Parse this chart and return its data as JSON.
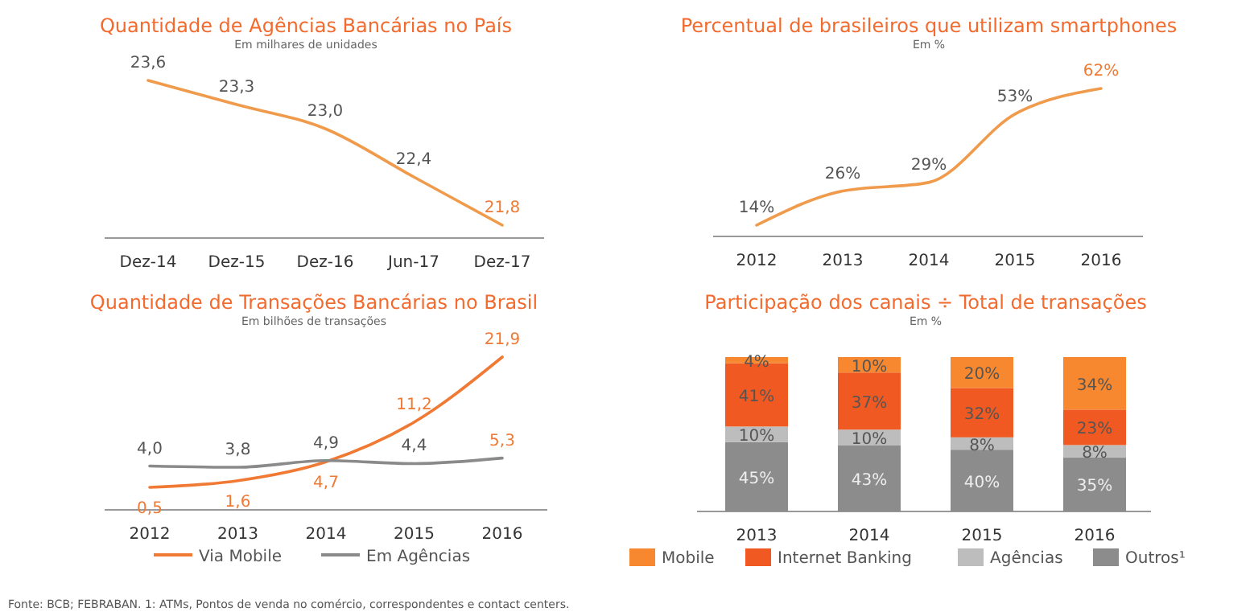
{
  "chart_data": [
    {
      "type": "line",
      "title": "Quantidade de Agências Bancárias no País",
      "subtitle": "Em milhares de unidades",
      "categories": [
        "Dez-14",
        "Dez-15",
        "Dez-16",
        "Jun-17",
        "Dez-17"
      ],
      "series": [
        {
          "color": "#f09a4c",
          "values": [
            23.6,
            23.3,
            23.0,
            22.4,
            21.8
          ],
          "value_labels": [
            "23,6",
            "23,3",
            "23,0",
            "22,4",
            "21,8"
          ]
        }
      ],
      "data_labels": true,
      "legend": false
    },
    {
      "type": "line",
      "title": "Percentual de brasileiros que utilizam smartphones",
      "subtitle": "Em %",
      "categories": [
        "2012",
        "2013",
        "2014",
        "2015",
        "2016"
      ],
      "series": [
        {
          "color": "#f09a4c",
          "values": [
            14,
            26,
            29,
            53,
            62
          ],
          "value_labels": [
            "14%",
            "26%",
            "29%",
            "53%",
            "62%"
          ]
        }
      ],
      "data_labels": true,
      "legend": false
    },
    {
      "type": "line",
      "title": "Quantidade de Transações Bancárias no Brasil",
      "subtitle": "Em bilhões de transações",
      "categories": [
        "2012",
        "2013",
        "2014",
        "2015",
        "2016"
      ],
      "series": [
        {
          "name": "Via Mobile",
          "color": "#f07a34",
          "values": [
            0.5,
            1.6,
            4.7,
            11.2,
            21.9
          ],
          "value_labels": [
            "0,5",
            "1,6",
            "4,7",
            "11,2",
            "21,9"
          ]
        },
        {
          "name": "Em Agências",
          "color": "#8a8a8a",
          "values": [
            4.0,
            3.8,
            4.9,
            4.4,
            5.3
          ],
          "value_labels": [
            "4,0",
            "3,8",
            "4,9",
            "4,4",
            "5,3"
          ]
        }
      ],
      "data_labels": true,
      "legend": "bottom"
    },
    {
      "type": "bar",
      "stacked": true,
      "title": "Participação dos canais ÷ Total de transações",
      "subtitle": "Em %",
      "categories": [
        "2013",
        "2014",
        "2015",
        "2016"
      ],
      "series": [
        {
          "name": "Outros¹",
          "color": "#8c8c8c",
          "values": [
            45,
            43,
            40,
            35
          ],
          "value_labels": [
            "45%",
            "43%",
            "40%",
            "35%"
          ]
        },
        {
          "name": "Agências",
          "color": "#bdbdbd",
          "values": [
            10,
            10,
            8,
            8
          ],
          "value_labels": [
            "10%",
            "10%",
            "8%",
            "8%"
          ]
        },
        {
          "name": "Internet Banking",
          "color": "#f05a22",
          "values": [
            41,
            37,
            32,
            23
          ],
          "value_labels": [
            "41%",
            "37%",
            "32%",
            "23%"
          ]
        },
        {
          "name": "Mobile",
          "color": "#f7882f",
          "values": [
            4,
            10,
            20,
            34
          ],
          "value_labels": [
            "4%",
            "10%",
            "20%",
            "34%"
          ]
        }
      ],
      "data_labels": true,
      "legend": "bottom",
      "annotations": [
        "Fonte: BCB; FEBRABAN. 1: ATMs, Pontos de venda no comércio, correspondentes e contact centers."
      ]
    }
  ]
}
